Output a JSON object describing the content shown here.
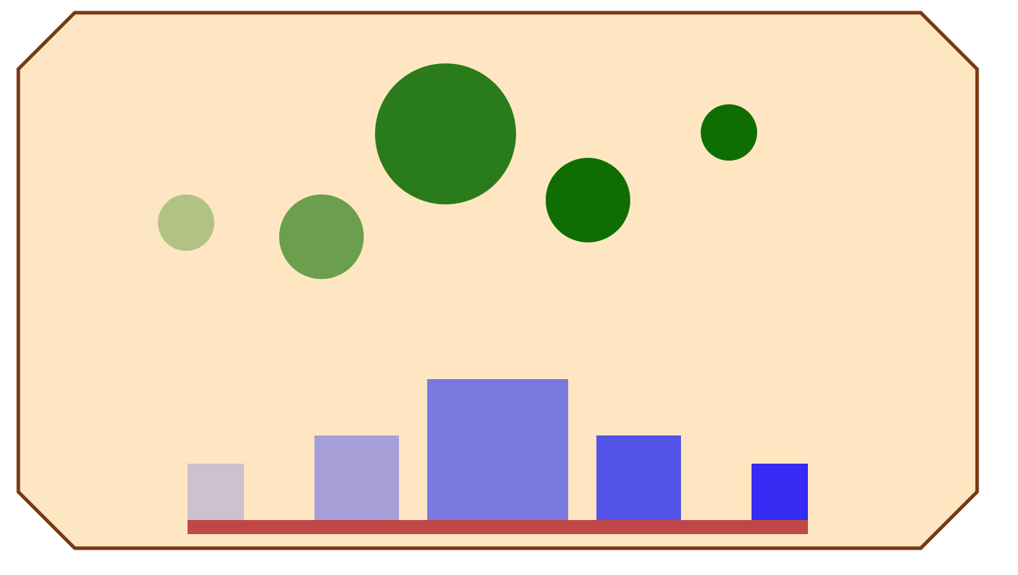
{
  "panel": {
    "fill": "#fee6c2",
    "stroke": "#773a13"
  },
  "circles": [
    {
      "color": "#b2c285",
      "size_rank": 1
    },
    {
      "color": "#6b9e4d",
      "size_rank": 3
    },
    {
      "color": "#297b1b",
      "size_rank": 5
    },
    {
      "color": "#0e6e03",
      "size_rank": 3
    },
    {
      "color": "#0e6e03",
      "size_rank": 1
    }
  ],
  "bars": [
    {
      "color": "#cdc0d1",
      "size_rank": 1
    },
    {
      "color": "#a79fd8",
      "size_rank": 3
    },
    {
      "color": "#7a79df",
      "size_rank": 5
    },
    {
      "color": "#5353e8",
      "size_rank": 3
    },
    {
      "color": "#352bf2",
      "size_rank": 1
    }
  ],
  "base_bar": {
    "color": "#c04748"
  }
}
